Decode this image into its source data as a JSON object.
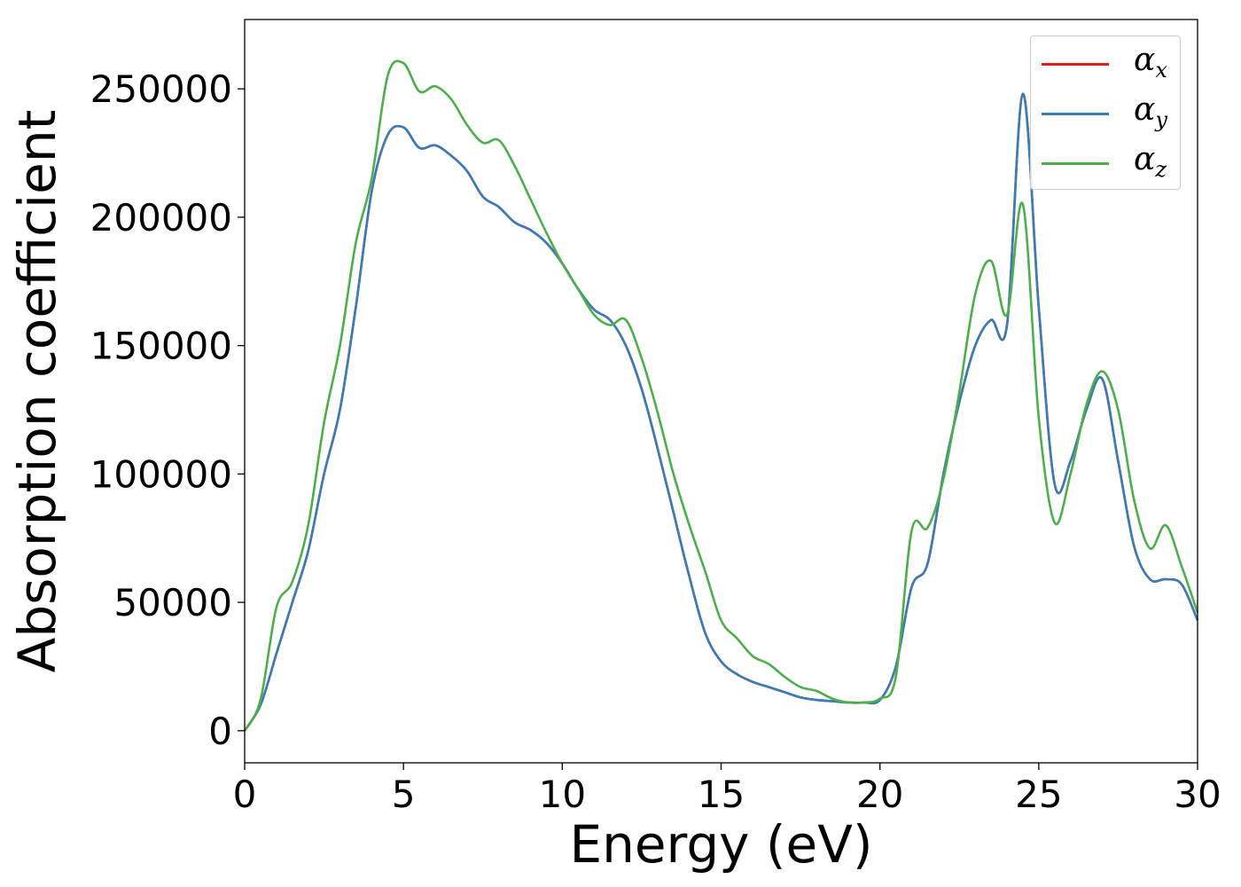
{
  "chart_data": {
    "type": "line",
    "xlabel": "Energy (eV)",
    "ylabel": "Absorption coefficient",
    "xlim": [
      0,
      30
    ],
    "ylim": [
      -12500,
      277000
    ],
    "xticks": [
      0,
      5,
      10,
      15,
      20,
      25,
      30
    ],
    "xtick_labels": [
      "0",
      "5",
      "10",
      "15",
      "20",
      "25",
      "30"
    ],
    "yticks": [
      0,
      50000,
      100000,
      150000,
      200000,
      250000
    ],
    "ytick_labels": [
      "0",
      "50000",
      "100000",
      "150000",
      "200000",
      "250000"
    ],
    "grid": false,
    "legend_position": "top-right",
    "x": [
      0,
      0.5,
      1,
      1.5,
      2,
      2.5,
      3,
      3.5,
      4,
      4.5,
      5,
      5.5,
      6,
      6.5,
      7,
      7.5,
      8,
      8.5,
      9,
      9.5,
      10,
      10.5,
      11,
      11.5,
      12,
      12.5,
      13,
      13.5,
      14,
      14.5,
      15,
      15.5,
      16,
      16.5,
      17,
      17.5,
      18,
      18.5,
      19,
      19.5,
      20,
      20.5,
      21,
      21.5,
      22,
      22.5,
      23,
      23.5,
      24,
      24.5,
      25,
      25.5,
      26,
      26.5,
      27,
      27.5,
      28,
      28.5,
      29,
      29.5,
      30
    ],
    "series": [
      {
        "name": "α",
        "subscript": "x",
        "color": "#e41a1c",
        "values": [
          0,
          10000,
          30000,
          50000,
          70000,
          100000,
          125000,
          165000,
          210000,
          232000,
          235000,
          227000,
          228000,
          224000,
          218000,
          208000,
          204000,
          198000,
          195000,
          190000,
          182000,
          172000,
          164000,
          160000,
          150000,
          133000,
          110000,
          85000,
          60000,
          38000,
          27000,
          22000,
          19000,
          17000,
          15000,
          13000,
          12000,
          11500,
          11000,
          11000,
          12000,
          25000,
          56000,
          65000,
          100000,
          128000,
          150000,
          160000,
          158000,
          248000,
          165000,
          96000,
          105000,
          125000,
          137000,
          105000,
          72000,
          59000,
          59000,
          57000,
          43000
        ]
      },
      {
        "name": "α",
        "subscript": "y",
        "color": "#377eb8",
        "values": [
          0,
          10000,
          30000,
          50000,
          70000,
          100000,
          125000,
          165000,
          210000,
          232000,
          235000,
          227000,
          228000,
          224000,
          218000,
          208000,
          204000,
          198000,
          195000,
          190000,
          182000,
          172000,
          164000,
          160000,
          150000,
          133000,
          110000,
          85000,
          60000,
          38000,
          27000,
          22000,
          19000,
          17000,
          15000,
          13000,
          12000,
          11500,
          11000,
          11000,
          12000,
          25000,
          56000,
          65000,
          100000,
          128000,
          150000,
          160000,
          158000,
          248000,
          165000,
          96000,
          105000,
          125000,
          137000,
          105000,
          72000,
          59000,
          59000,
          57000,
          43000
        ]
      },
      {
        "name": "α",
        "subscript": "z",
        "color": "#4daf4a",
        "values": [
          0,
          12000,
          48000,
          58000,
          80000,
          120000,
          150000,
          190000,
          215000,
          255000,
          260000,
          249000,
          251000,
          246000,
          236000,
          229000,
          230000,
          220000,
          207000,
          194000,
          182000,
          172000,
          162000,
          158000,
          160000,
          145000,
          124000,
          100000,
          80000,
          62000,
          43000,
          36000,
          29000,
          26000,
          21000,
          17000,
          15500,
          12500,
          11000,
          11000,
          12500,
          21000,
          78000,
          79000,
          98000,
          132000,
          170000,
          183000,
          162000,
          205000,
          122000,
          81000,
          100000,
          127000,
          140000,
          125000,
          90000,
          71000,
          80000,
          64000,
          46000
        ]
      }
    ]
  }
}
